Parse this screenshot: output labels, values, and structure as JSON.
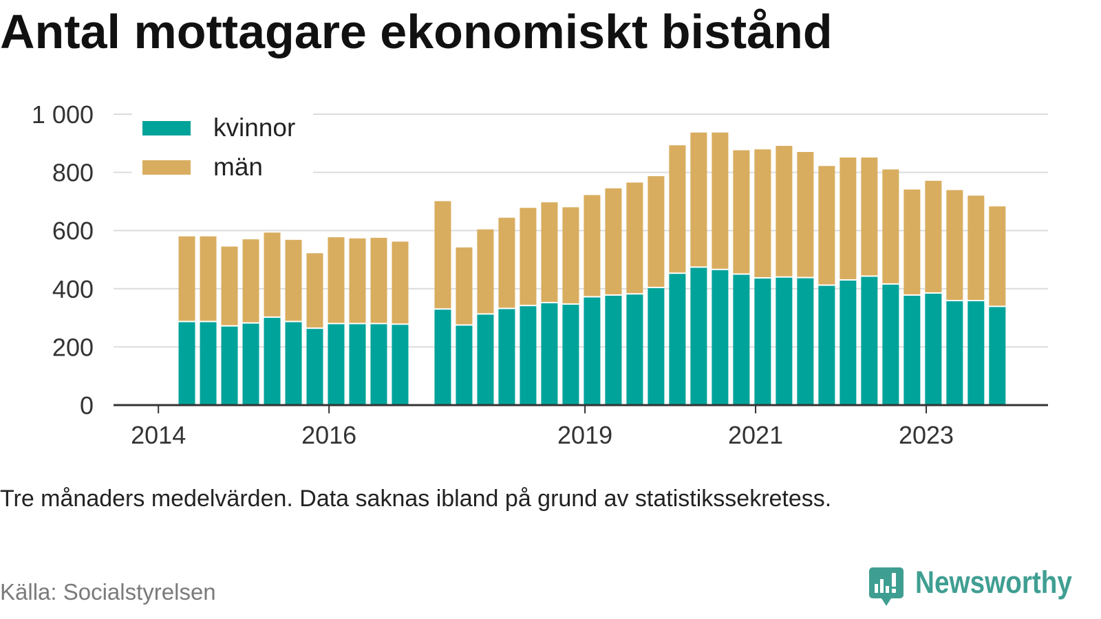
{
  "chart_data": {
    "type": "bar",
    "stacked": true,
    "title": "Antal mottagare ekonomiskt bistånd",
    "note": "Tre månaders medelvärden. Data saknas ibland på grund av statistikssekretess.",
    "source": "Källa: Socialstyrelsen",
    "x": [
      "2014-05",
      "2014-08",
      "2014-11",
      "2015-02",
      "2015-05",
      "2015-08",
      "2015-11",
      "2016-02",
      "2016-05",
      "2016-08",
      "2016-11",
      "2017-05",
      "2017-08",
      "2017-11",
      "2018-02",
      "2018-05",
      "2018-08",
      "2018-11",
      "2019-02",
      "2019-05",
      "2019-08",
      "2019-11",
      "2020-02",
      "2020-05",
      "2020-08",
      "2020-11",
      "2021-02",
      "2021-05",
      "2021-08",
      "2021-11",
      "2022-02",
      "2022-05",
      "2022-08",
      "2022-11",
      "2023-02",
      "2023-05",
      "2023-08",
      "2023-11"
    ],
    "series": [
      {
        "name": "kvinnor",
        "color": "#00a39a",
        "values": [
          285,
          285,
          270,
          280,
          300,
          285,
          262,
          278,
          278,
          278,
          276,
          328,
          273,
          311,
          330,
          340,
          350,
          345,
          370,
          376,
          380,
          402,
          451,
          472,
          464,
          448,
          435,
          438,
          436,
          410,
          428,
          441,
          414,
          376,
          383,
          357,
          357,
          337
        ]
      },
      {
        "name": "män",
        "color": "#d9ad5f",
        "values": [
          295,
          295,
          275,
          290,
          293,
          283,
          260,
          299,
          295,
          297,
          286,
          373,
          269,
          293,
          314,
          338,
          347,
          335,
          352,
          369,
          385,
          385,
          442,
          465,
          473,
          428,
          444,
          453,
          434,
          412,
          423,
          410,
          396,
          365,
          388,
          382,
          363,
          346
        ]
      }
    ],
    "x_ticks": [
      "2014",
      "2016",
      "2019",
      "2021",
      "2023"
    ],
    "xlim": [
      "2013-06-22",
      "2024-06-05"
    ],
    "ylim": [
      0,
      1000
    ],
    "y_ticks": [
      0,
      200,
      400,
      600,
      800,
      1000
    ],
    "y_tick_labels": [
      "0",
      "200",
      "400",
      "600",
      "800",
      "1 000"
    ],
    "grid": true,
    "legend": "top-left"
  },
  "branding": {
    "logo_text": "Newsworthy",
    "logo_icon": "bar-chart-speech-bubble-icon",
    "color": "#3f9e92"
  }
}
